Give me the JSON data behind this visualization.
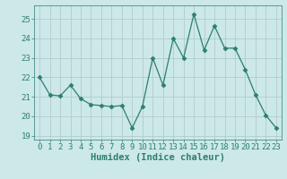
{
  "x": [
    0,
    1,
    2,
    3,
    4,
    5,
    6,
    7,
    8,
    9,
    10,
    11,
    12,
    13,
    14,
    15,
    16,
    17,
    18,
    19,
    20,
    21,
    22,
    23
  ],
  "y": [
    22.0,
    21.1,
    21.05,
    21.6,
    20.9,
    20.6,
    20.55,
    20.5,
    20.55,
    19.4,
    20.5,
    23.0,
    21.6,
    24.0,
    23.0,
    25.25,
    23.4,
    24.65,
    23.5,
    23.5,
    22.4,
    21.1,
    20.05,
    19.4
  ],
  "xlabel": "Humidex (Indice chaleur)",
  "ylim": [
    18.8,
    25.7
  ],
  "xlim": [
    -0.5,
    23.5
  ],
  "yticks": [
    19,
    20,
    21,
    22,
    23,
    24,
    25
  ],
  "xticks": [
    0,
    1,
    2,
    3,
    4,
    5,
    6,
    7,
    8,
    9,
    10,
    11,
    12,
    13,
    14,
    15,
    16,
    17,
    18,
    19,
    20,
    21,
    22,
    23
  ],
  "line_color": "#2d7f6e",
  "marker": "D",
  "marker_size": 2.5,
  "bg_color": "#cce8e8",
  "grid_color": "#b0cccc",
  "tick_color": "#2d7f6e",
  "label_fontsize": 6.5,
  "xlabel_fontsize": 7.5
}
